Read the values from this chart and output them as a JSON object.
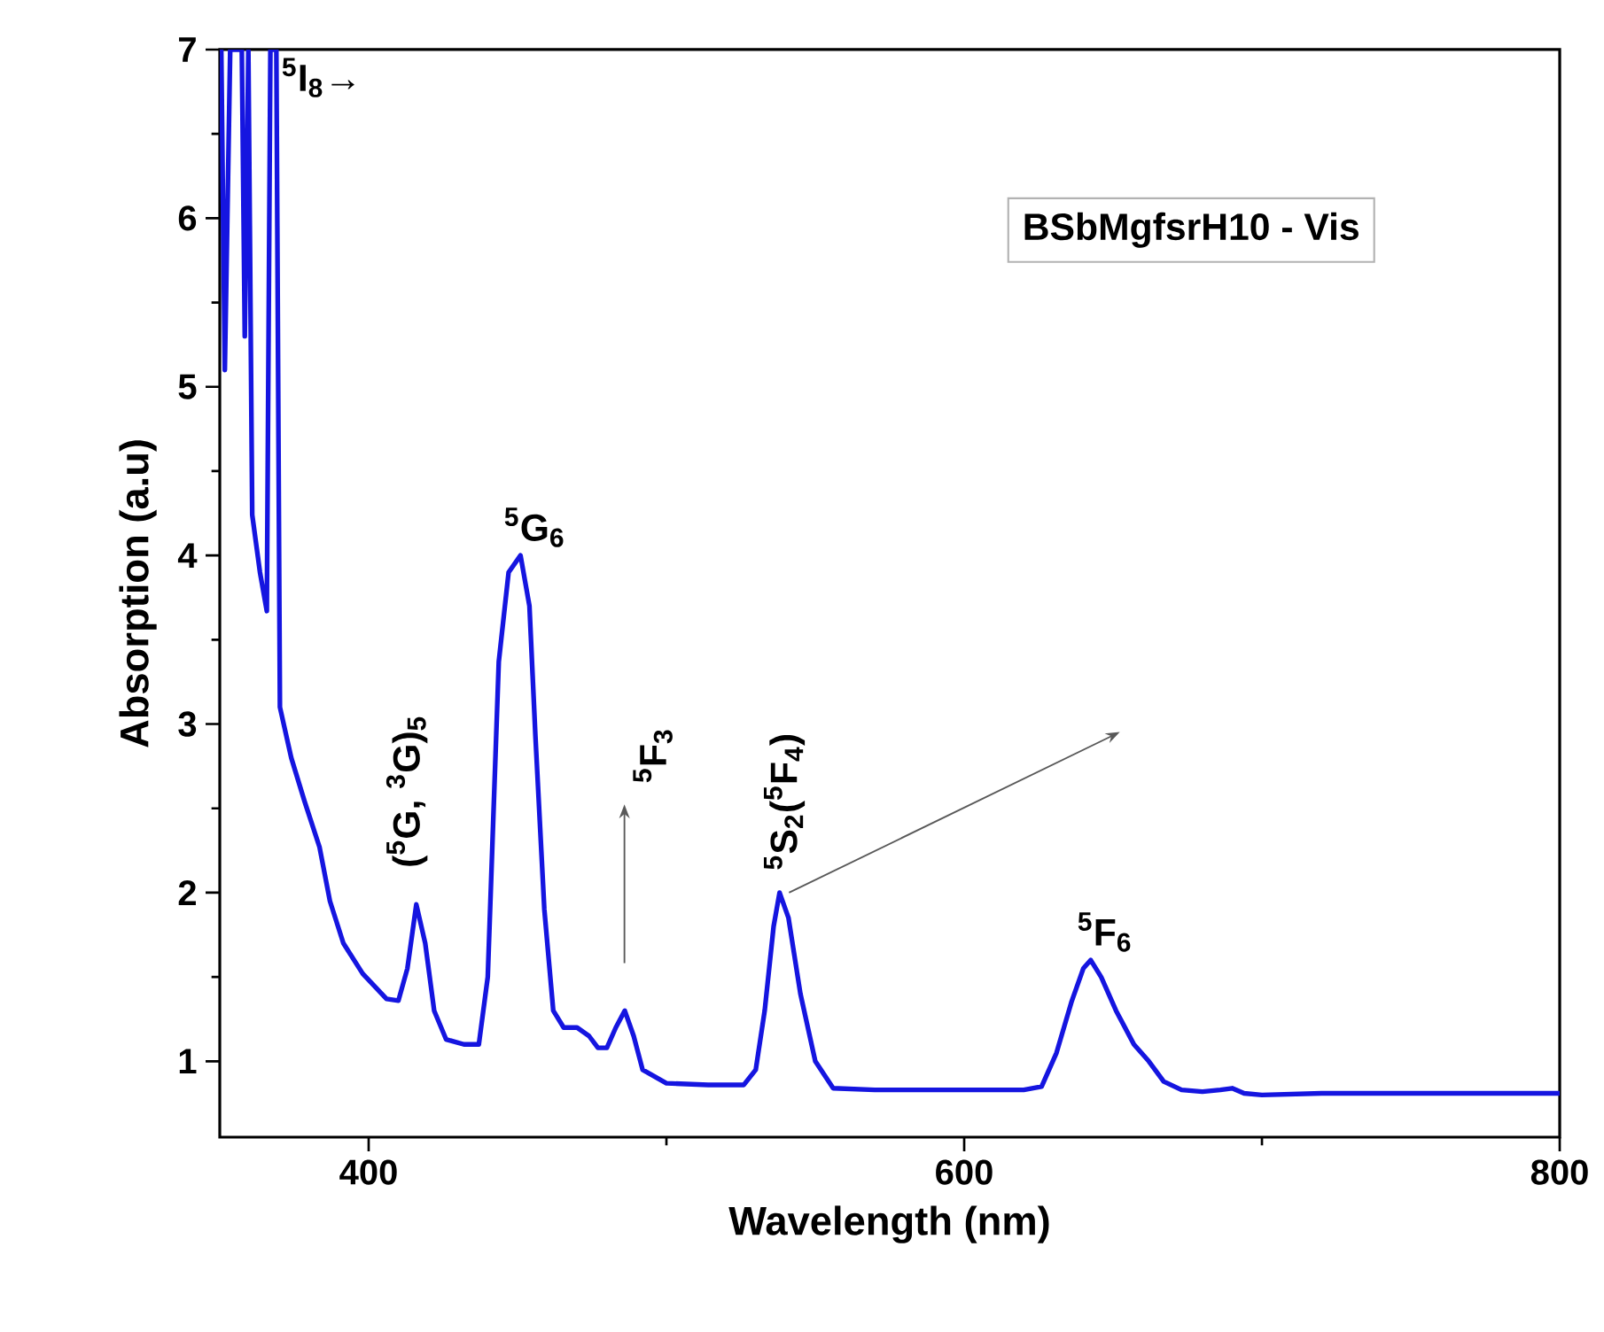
{
  "chart_data": {
    "type": "line",
    "xlabel": "Wavelength (nm)",
    "ylabel": "Absorption (a.u)",
    "xlim": [
      350,
      800
    ],
    "ylim": [
      0.55,
      7
    ],
    "xticks": [
      400,
      600,
      800
    ],
    "yticks": [
      1,
      2,
      3,
      4,
      5,
      6,
      7
    ],
    "x": [
      350.5,
      351.7,
      353.5,
      355.0,
      357.4,
      358.4,
      359.6,
      360.9,
      363.5,
      365.8,
      367.0,
      369.0,
      370.2,
      374,
      378.5,
      383.5,
      387,
      391.5,
      398,
      406,
      410,
      413,
      416,
      419,
      422,
      426,
      432,
      437,
      440,
      443.7,
      447,
      451,
      454,
      456,
      459,
      462,
      465.5,
      470,
      474,
      477,
      480,
      483,
      486,
      489,
      492,
      500,
      514,
      526,
      530,
      533,
      536,
      538,
      541,
      545,
      550,
      556,
      570,
      600,
      620,
      626,
      631,
      636,
      640,
      642.5,
      646,
      651,
      657,
      662,
      667,
      673,
      680,
      686,
      690,
      694,
      700,
      720,
      750,
      800
    ],
    "series": [
      {
        "color": "#1515e0",
        "values": [
          7,
          5.1,
          7,
          7,
          7,
          5.3,
          7,
          4.24,
          3.9,
          3.67,
          7,
          7,
          3.1,
          2.8,
          2.54,
          2.27,
          1.95,
          1.7,
          1.52,
          1.37,
          1.36,
          1.55,
          1.93,
          1.7,
          1.3,
          1.13,
          1.1,
          1.1,
          1.5,
          3.37,
          3.9,
          4.0,
          3.7,
          2.93,
          1.9,
          1.3,
          1.2,
          1.2,
          1.15,
          1.08,
          1.08,
          1.2,
          1.3,
          1.15,
          0.95,
          0.87,
          0.86,
          0.86,
          0.95,
          1.3,
          1.8,
          2.0,
          1.85,
          1.4,
          1.0,
          0.84,
          0.83,
          0.83,
          0.83,
          0.85,
          1.05,
          1.35,
          1.55,
          1.6,
          1.5,
          1.3,
          1.1,
          1.0,
          0.88,
          0.83,
          0.82,
          0.83,
          0.84,
          0.81,
          0.8,
          0.81,
          0.81,
          0.81
        ]
      }
    ],
    "annotations": [
      {
        "text": "$^{5}$I$_{8}$→",
        "x": 368,
        "y": 7
      },
      "BSbMgfsrH10 - Vis",
      {
        "text": "$^{5}$G$_{6}$",
        "x": 451,
        "y": 4.0
      },
      {
        "text": "($^{5}$G, $^{3}$G)$_{5}$",
        "x": 416,
        "y": 1.93
      },
      "$^{5}$F$_{3}$",
      {
        "text": "$^{5}$S$_{2}$($^{5}$F$_{4}$)",
        "x": 538,
        "y": 2.0
      },
      {
        "text": "$^{5}$F$_{6}$",
        "x": 642.5,
        "y": 1.6
      }
    ]
  }
}
